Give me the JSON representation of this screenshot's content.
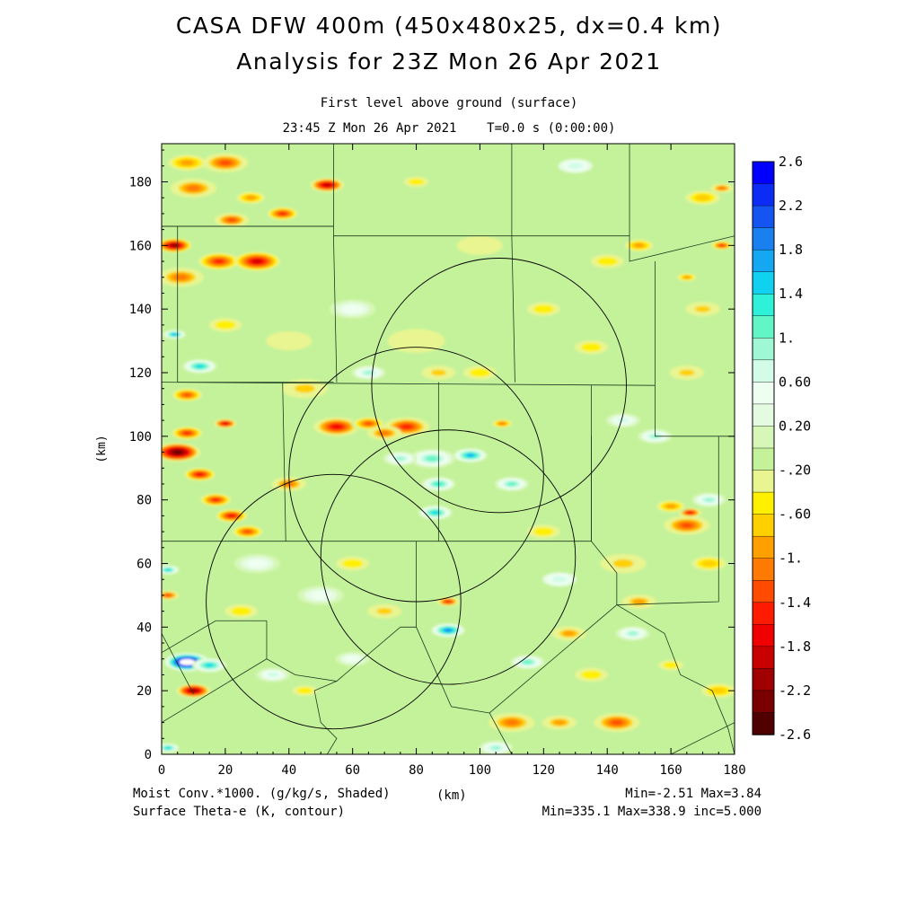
{
  "header": {
    "title_line1": "CASA DFW 400m (450x480x25, dx=0.4 km)",
    "title_line2": "Analysis for 23Z Mon 26 Apr 2021",
    "subtitle_line1": "First level above ground (surface)",
    "subtitle_line2": "23:45 Z Mon 26 Apr 2021    T=0.0 s (0:00:00)"
  },
  "footer": {
    "left_line1": "Moist Conv.*1000. (g/kg/s, Shaded)",
    "left_line2": "Surface Theta-e (K, contour)",
    "center_unit": "(km)",
    "right_line1": "Min=-2.51 Max=3.84",
    "right_line2": "Min=335.1 Max=338.9 inc=5.000"
  },
  "chart_data": {
    "type": "heatmap",
    "xlabel": "(km)",
    "ylabel": "(km)",
    "xlim": [
      0,
      180
    ],
    "ylim": [
      0,
      192
    ],
    "x_ticks": [
      0,
      20,
      40,
      60,
      80,
      100,
      120,
      140,
      160,
      180
    ],
    "y_ticks": [
      0,
      20,
      40,
      60,
      80,
      100,
      120,
      140,
      160,
      180
    ],
    "field": "Moist Conv.*1000. (g/kg/s)",
    "field_min": -2.51,
    "field_max": 3.84,
    "background_value": 0.0,
    "colorbar": {
      "range": [
        -2.6,
        2.6
      ],
      "labels": [
        "2.6",
        "2.2",
        "1.8",
        "1.4",
        "1.",
        "0.60",
        "0.20",
        "-.20",
        "-.60",
        "-1.",
        "-1.4",
        "-1.8",
        "-2.2",
        "-2.6"
      ],
      "colors": [
        "#0000ff",
        "#0c2cf5",
        "#1455f2",
        "#1a80f0",
        "#15a8f2",
        "#10d2f0",
        "#2ff0d8",
        "#62f5c6",
        "#9ff7d5",
        "#d2fbe8",
        "#eefff2",
        "#e4fbe1",
        "#d7f7b8",
        "#c4f29a",
        "#e8f590",
        "#fff000",
        "#ffd000",
        "#ffa000",
        "#ff7a00",
        "#ff4b00",
        "#ff1b00",
        "#f00000",
        "#c80000",
        "#a00000",
        "#7a0000",
        "#500000"
      ]
    },
    "blobs": [
      {
        "x": 8,
        "y": 186,
        "r": 4,
        "v": -0.9
      },
      {
        "x": 20,
        "y": 186,
        "r": 4,
        "v": -1.2
      },
      {
        "x": 52,
        "y": 179,
        "r": 3,
        "v": -2.0
      },
      {
        "x": 10,
        "y": 178,
        "r": 4,
        "v": -1.0
      },
      {
        "x": 28,
        "y": 175,
        "r": 3,
        "v": -0.9
      },
      {
        "x": 38,
        "y": 170,
        "r": 3,
        "v": -1.5
      },
      {
        "x": 22,
        "y": 168,
        "r": 3,
        "v": -1.2
      },
      {
        "x": 4,
        "y": 160,
        "r": 3,
        "v": -2.3
      },
      {
        "x": 18,
        "y": 155,
        "r": 4,
        "v": -1.5
      },
      {
        "x": 30,
        "y": 155,
        "r": 4,
        "v": -1.9
      },
      {
        "x": 6,
        "y": 150,
        "r": 4,
        "v": -1.0
      },
      {
        "x": 4,
        "y": 132,
        "r": 2,
        "v": 1.8
      },
      {
        "x": 12,
        "y": 122,
        "r": 3,
        "v": 1.6
      },
      {
        "x": 8,
        "y": 113,
        "r": 3,
        "v": -1.3
      },
      {
        "x": 20,
        "y": 104,
        "r": 2,
        "v": -1.8
      },
      {
        "x": 5,
        "y": 95,
        "r": 4,
        "v": -2.6
      },
      {
        "x": 8,
        "y": 101,
        "r": 3,
        "v": -1.5
      },
      {
        "x": 12,
        "y": 88,
        "r": 3,
        "v": -1.7
      },
      {
        "x": 17,
        "y": 80,
        "r": 3,
        "v": -1.5
      },
      {
        "x": 22,
        "y": 75,
        "r": 3,
        "v": -1.7
      },
      {
        "x": 27,
        "y": 70,
        "r": 3,
        "v": -1.3
      },
      {
        "x": 55,
        "y": 103,
        "r": 4,
        "v": -1.6
      },
      {
        "x": 65,
        "y": 104,
        "r": 3,
        "v": -1.3
      },
      {
        "x": 77,
        "y": 103,
        "r": 4,
        "v": -1.4
      },
      {
        "x": 70,
        "y": 101,
        "r": 3,
        "v": -1.0
      },
      {
        "x": 107,
        "y": 104,
        "r": 2,
        "v": -1.1
      },
      {
        "x": 65,
        "y": 120,
        "r": 3,
        "v": 0.9
      },
      {
        "x": 87,
        "y": 120,
        "r": 3,
        "v": -0.6
      },
      {
        "x": 85,
        "y": 93,
        "r": 4,
        "v": 1.2
      },
      {
        "x": 97,
        "y": 94,
        "r": 3,
        "v": 1.8
      },
      {
        "x": 87,
        "y": 85,
        "r": 3,
        "v": 1.4
      },
      {
        "x": 86,
        "y": 76,
        "r": 3,
        "v": 1.5
      },
      {
        "x": 75,
        "y": 93,
        "r": 3,
        "v": 0.9
      },
      {
        "x": 110,
        "y": 85,
        "r": 3,
        "v": 1.1
      },
      {
        "x": 2,
        "y": 58,
        "r": 2,
        "v": 1.5
      },
      {
        "x": 2,
        "y": 50,
        "r": 2,
        "v": -1.2
      },
      {
        "x": 90,
        "y": 39,
        "r": 3,
        "v": 2.0
      },
      {
        "x": 90,
        "y": 48,
        "r": 2,
        "v": -1.4
      },
      {
        "x": 8,
        "y": 29,
        "r": 4,
        "v": 3.8
      },
      {
        "x": 15,
        "y": 28,
        "r": 3,
        "v": 1.5
      },
      {
        "x": 10,
        "y": 20,
        "r": 3,
        "v": -2.2
      },
      {
        "x": 2,
        "y": 2,
        "r": 2,
        "v": 1.6
      },
      {
        "x": 105,
        "y": 2,
        "r": 3,
        "v": 1.0
      },
      {
        "x": 115,
        "y": 29,
        "r": 3,
        "v": 1.1
      },
      {
        "x": 128,
        "y": 38,
        "r": 3,
        "v": -0.8
      },
      {
        "x": 143,
        "y": 10,
        "r": 4,
        "v": -1.2
      },
      {
        "x": 110,
        "y": 10,
        "r": 4,
        "v": -1.0
      },
      {
        "x": 125,
        "y": 10,
        "r": 3,
        "v": -0.8
      },
      {
        "x": 148,
        "y": 38,
        "r": 3,
        "v": 0.9
      },
      {
        "x": 165,
        "y": 72,
        "r": 4,
        "v": -1.2
      },
      {
        "x": 166,
        "y": 76,
        "r": 2,
        "v": -1.6
      },
      {
        "x": 160,
        "y": 78,
        "r": 3,
        "v": -0.9
      },
      {
        "x": 172,
        "y": 60,
        "r": 3,
        "v": -0.7
      },
      {
        "x": 172,
        "y": 80,
        "r": 3,
        "v": 0.9
      },
      {
        "x": 176,
        "y": 160,
        "r": 2,
        "v": -1.5
      },
      {
        "x": 176,
        "y": 178,
        "r": 2,
        "v": -1.0
      },
      {
        "x": 170,
        "y": 175,
        "r": 3,
        "v": -0.7
      },
      {
        "x": 150,
        "y": 160,
        "r": 3,
        "v": -0.9
      },
      {
        "x": 165,
        "y": 150,
        "r": 2,
        "v": -0.9
      },
      {
        "x": 170,
        "y": 140,
        "r": 3,
        "v": -0.6
      },
      {
        "x": 165,
        "y": 120,
        "r": 3,
        "v": -0.6
      },
      {
        "x": 155,
        "y": 100,
        "r": 3,
        "v": 0.9
      },
      {
        "x": 145,
        "y": 105,
        "r": 3,
        "v": 0.8
      },
      {
        "x": 120,
        "y": 140,
        "r": 4,
        "v": -0.5
      },
      {
        "x": 135,
        "y": 128,
        "r": 4,
        "v": -0.5
      },
      {
        "x": 140,
        "y": 155,
        "r": 4,
        "v": -0.5
      },
      {
        "x": 60,
        "y": 140,
        "r": 4,
        "v": 0.6
      },
      {
        "x": 80,
        "y": 130,
        "r": 5,
        "v": -0.4
      },
      {
        "x": 130,
        "y": 185,
        "r": 3,
        "v": 0.7
      },
      {
        "x": 80,
        "y": 180,
        "r": 3,
        "v": -0.5
      },
      {
        "x": 100,
        "y": 160,
        "r": 4,
        "v": -0.4
      },
      {
        "x": 40,
        "y": 130,
        "r": 4,
        "v": -0.4
      },
      {
        "x": 60,
        "y": 60,
        "r": 4,
        "v": -0.5
      },
      {
        "x": 40,
        "y": 85,
        "r": 3,
        "v": -1.0
      },
      {
        "x": 50,
        "y": 50,
        "r": 4,
        "v": 0.5
      },
      {
        "x": 70,
        "y": 45,
        "r": 3,
        "v": -0.6
      },
      {
        "x": 45,
        "y": 20,
        "r": 3,
        "v": -0.5
      },
      {
        "x": 60,
        "y": 30,
        "r": 3,
        "v": 0.6
      },
      {
        "x": 120,
        "y": 70,
        "r": 4,
        "v": -0.5
      },
      {
        "x": 125,
        "y": 55,
        "r": 3,
        "v": 0.7
      },
      {
        "x": 145,
        "y": 60,
        "r": 4,
        "v": -0.6
      },
      {
        "x": 150,
        "y": 48,
        "r": 3,
        "v": -0.8
      },
      {
        "x": 160,
        "y": 28,
        "r": 3,
        "v": -0.5
      },
      {
        "x": 175,
        "y": 20,
        "r": 3,
        "v": -0.7
      },
      {
        "x": 135,
        "y": 25,
        "r": 4,
        "v": -0.5
      },
      {
        "x": 25,
        "y": 45,
        "r": 4,
        "v": -0.5
      },
      {
        "x": 30,
        "y": 60,
        "r": 4,
        "v": 0.5
      },
      {
        "x": 20,
        "y": 135,
        "r": 4,
        "v": -0.5
      },
      {
        "x": 45,
        "y": 115,
        "r": 4,
        "v": -0.6
      },
      {
        "x": 100,
        "y": 120,
        "r": 4,
        "v": -0.5
      },
      {
        "x": 35,
        "y": 25,
        "r": 3,
        "v": 0.8
      }
    ],
    "range_rings": [
      {
        "x": 54,
        "y": 48,
        "r": 40
      },
      {
        "x": 80,
        "y": 88,
        "r": 40
      },
      {
        "x": 90,
        "y": 62,
        "r": 40
      },
      {
        "x": 106,
        "y": 116,
        "r": 40
      }
    ],
    "boundaries": [
      [
        [
          0,
          166
        ],
        [
          54,
          166
        ],
        [
          54,
          192
        ]
      ],
      [
        [
          0,
          166
        ],
        [
          54,
          166
        ],
        [
          54,
          163
        ],
        [
          110,
          163
        ],
        [
          110,
          192
        ]
      ],
      [
        [
          110,
          163
        ],
        [
          147,
          163
        ],
        [
          147,
          192
        ]
      ],
      [
        [
          147,
          163
        ],
        [
          147,
          155
        ],
        [
          180,
          163
        ]
      ],
      [
        [
          5,
          166
        ],
        [
          5,
          117
        ],
        [
          54,
          117
        ]
      ],
      [
        [
          54,
          163
        ],
        [
          55,
          117
        ]
      ],
      [
        [
          110,
          163
        ],
        [
          111,
          117
        ]
      ],
      [
        [
          0,
          117
        ],
        [
          155,
          116
        ]
      ],
      [
        [
          155,
          155
        ],
        [
          155,
          116
        ]
      ],
      [
        [
          155,
          116
        ],
        [
          155,
          100
        ],
        [
          180,
          100
        ]
      ],
      [
        [
          38,
          117
        ],
        [
          39,
          67
        ]
      ],
      [
        [
          87,
          117
        ],
        [
          87,
          67
        ]
      ],
      [
        [
          135,
          116
        ],
        [
          135,
          67
        ]
      ],
      [
        [
          0,
          67
        ],
        [
          135,
          67
        ]
      ],
      [
        [
          135,
          100
        ],
        [
          135,
          67
        ],
        [
          143,
          57
        ],
        [
          143,
          47
        ],
        [
          175,
          48
        ],
        [
          175,
          100
        ]
      ],
      [
        [
          80,
          67
        ],
        [
          80,
          40
        ]
      ],
      [
        [
          75,
          40
        ],
        [
          80,
          40
        ],
        [
          91,
          15
        ],
        [
          103,
          13
        ],
        [
          143,
          47
        ]
      ],
      [
        [
          33,
          42
        ],
        [
          17,
          42
        ],
        [
          0,
          32
        ]
      ],
      [
        [
          33,
          42
        ],
        [
          33,
          30
        ],
        [
          0,
          10
        ]
      ],
      [
        [
          33,
          30
        ],
        [
          42,
          25
        ],
        [
          55,
          23
        ],
        [
          75,
          40
        ]
      ],
      [
        [
          0,
          38
        ],
        [
          10,
          19
        ]
      ],
      [
        [
          55,
          23
        ],
        [
          48,
          20
        ],
        [
          50,
          10
        ],
        [
          55,
          5
        ],
        [
          52,
          0
        ]
      ],
      [
        [
          103,
          13
        ],
        [
          110,
          0
        ]
      ],
      [
        [
          143,
          47
        ],
        [
          158,
          38
        ],
        [
          163,
          25
        ],
        [
          173,
          20
        ],
        [
          178,
          8
        ],
        [
          180,
          0
        ]
      ],
      [
        [
          160,
          0
        ],
        [
          180,
          10
        ]
      ]
    ]
  }
}
